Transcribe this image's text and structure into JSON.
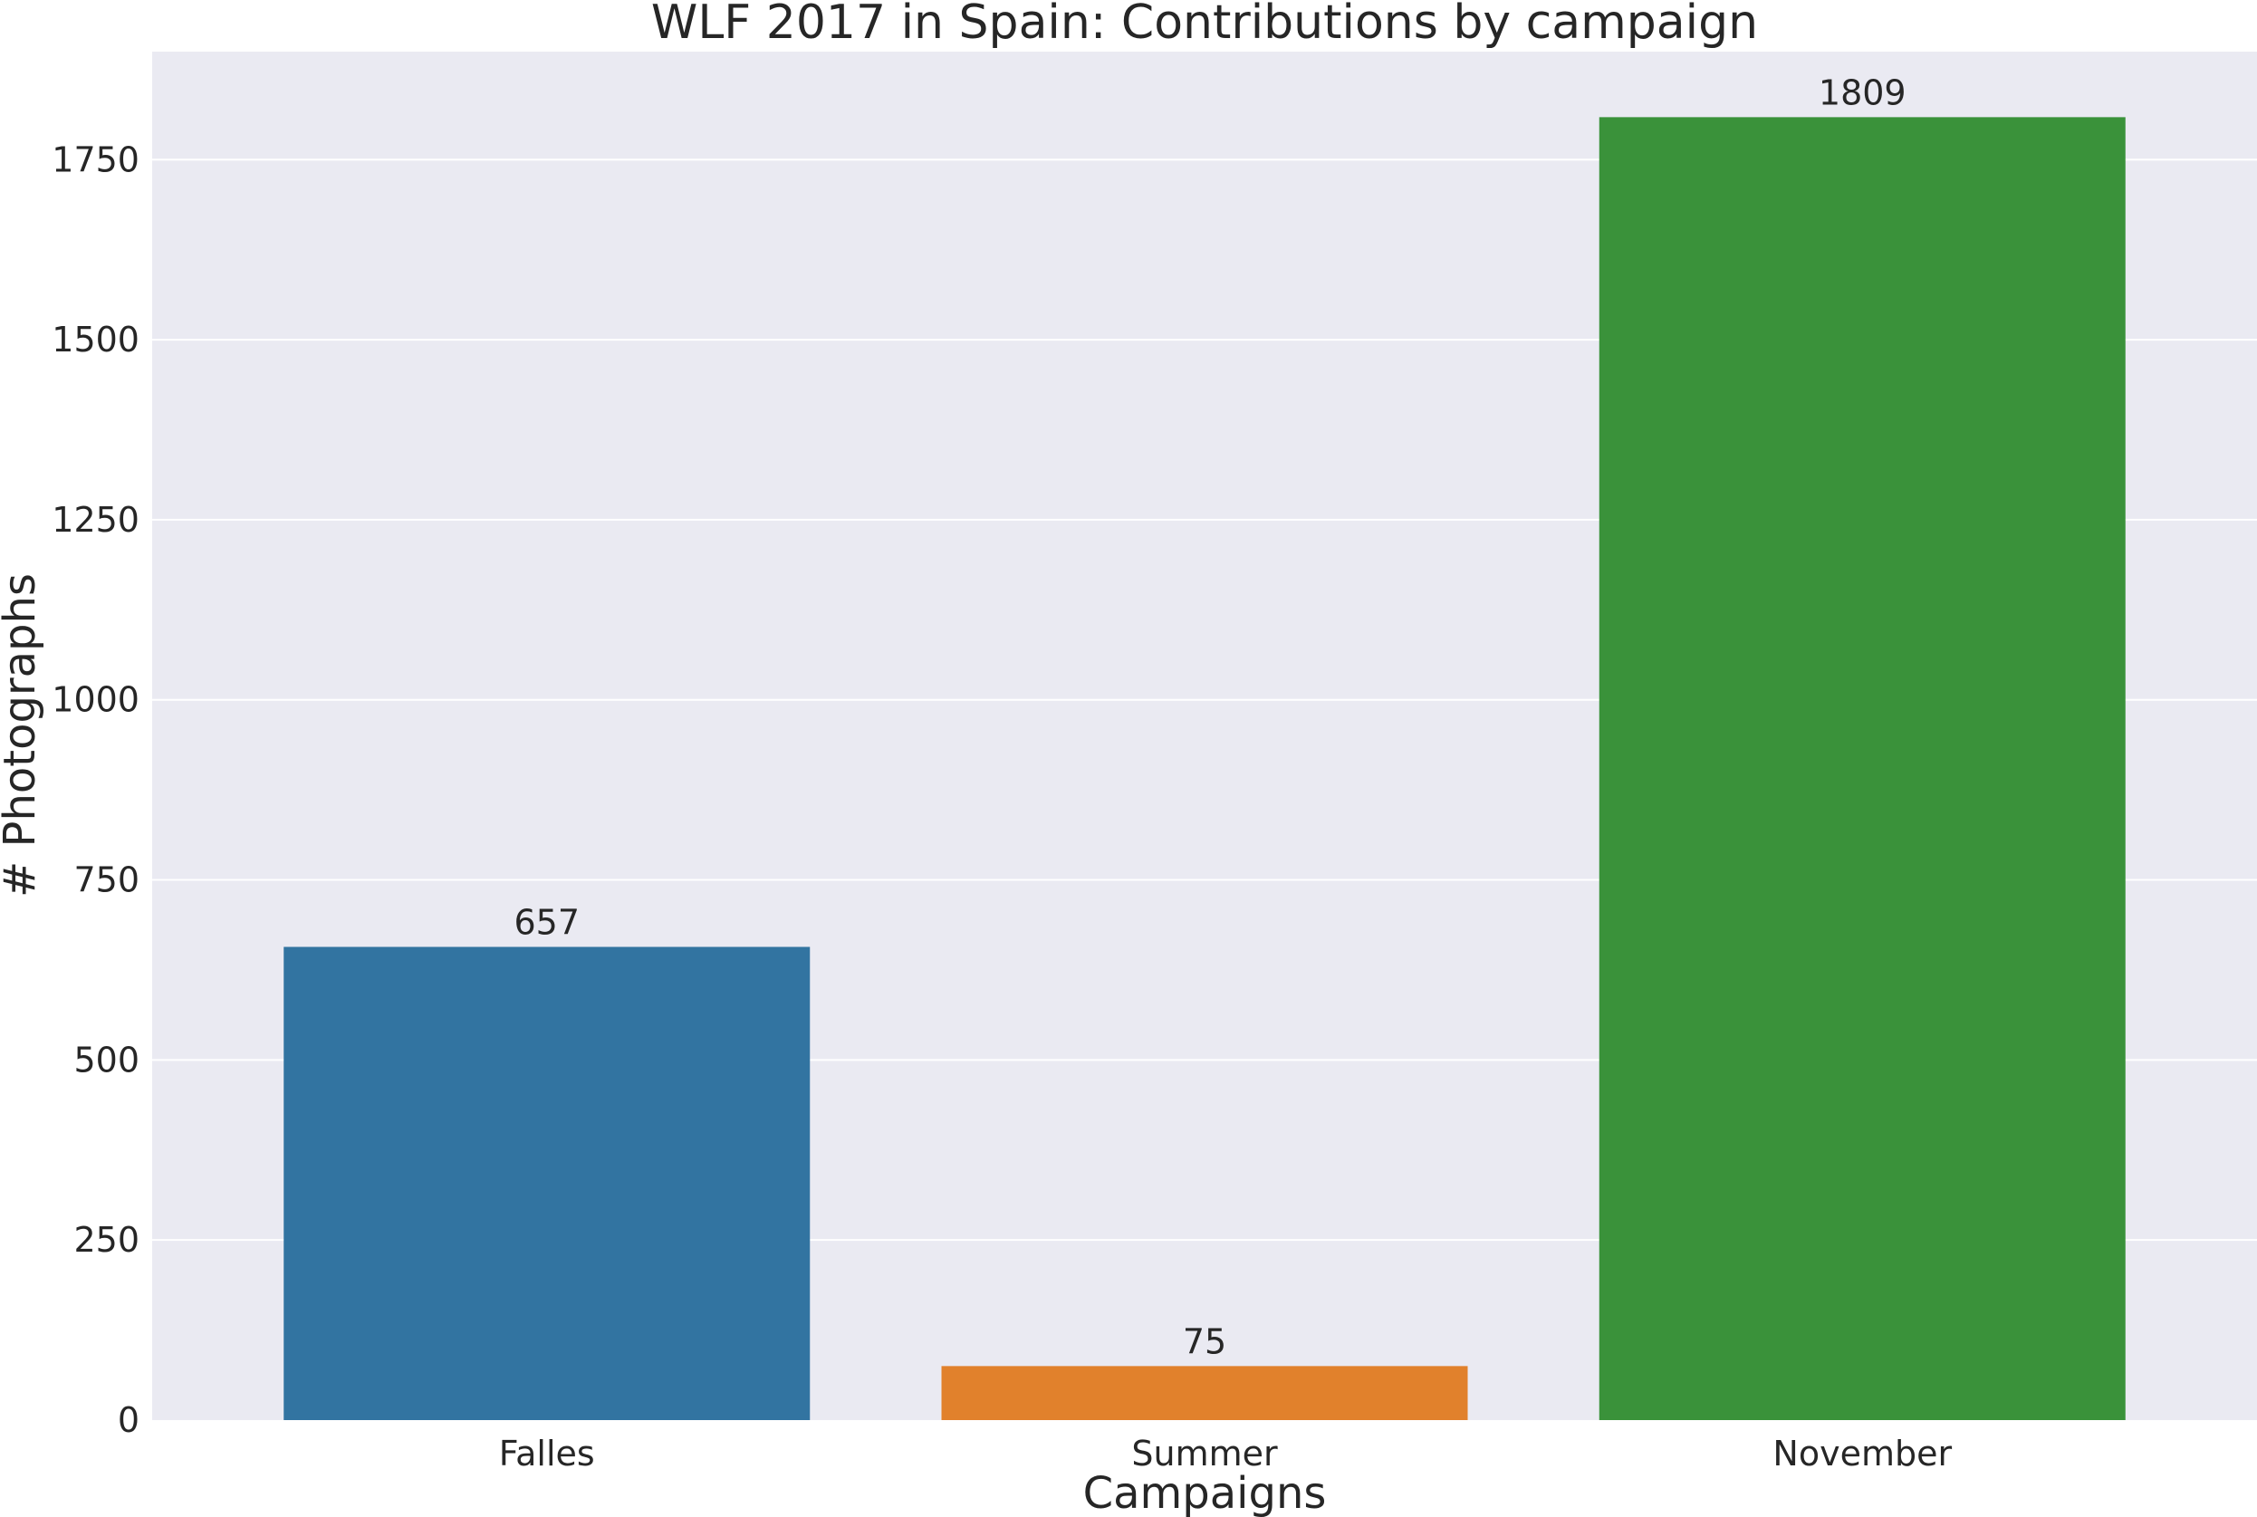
{
  "chart_data": {
    "type": "bar",
    "title": "WLF 2017 in Spain: Contributions by campaign",
    "xlabel": "Campaigns",
    "ylabel": "# Photographs",
    "categories": [
      "Falles",
      "Summer",
      "November"
    ],
    "values": [
      657,
      75,
      1809
    ],
    "data_labels": [
      "657",
      "75",
      "1809"
    ],
    "colors": [
      "#3274a1",
      "#e1812c",
      "#3a923a"
    ],
    "ylim": [
      0,
      1900
    ],
    "yticks": [
      0,
      250,
      500,
      750,
      1000,
      1250,
      1500,
      1750
    ],
    "grid": true,
    "background": "#eaeaf2",
    "gridline_color": "#ffffff"
  }
}
